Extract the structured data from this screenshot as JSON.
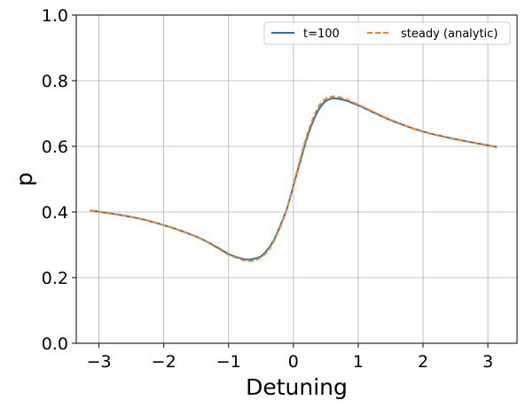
{
  "chart_data": {
    "type": "line",
    "xlabel": "Detuning",
    "ylabel": "p",
    "xlim": [
      -3.35,
      3.45
    ],
    "ylim": [
      0.0,
      1.0
    ],
    "xticks": [
      -3,
      -2,
      -1,
      0,
      1,
      2,
      3
    ],
    "xtick_labels": [
      "−3",
      "−2",
      "−1",
      "0",
      "1",
      "2",
      "3"
    ],
    "yticks": [
      0.0,
      0.2,
      0.4,
      0.6,
      0.8,
      1.0
    ],
    "ytick_labels": [
      "0.0",
      "0.2",
      "0.4",
      "0.6",
      "0.8",
      "1.0"
    ],
    "grid": true,
    "legend_position": "top-right",
    "series": [
      {
        "name": "t=100",
        "color": "#1f77b4",
        "dash": "solid",
        "x": [
          -3.14,
          -2.5,
          -2.0,
          -1.5,
          -1.2,
          -1.0,
          -0.8,
          -0.7,
          -0.6,
          -0.5,
          -0.4,
          -0.3,
          -0.2,
          -0.1,
          0.0,
          0.1,
          0.2,
          0.3,
          0.4,
          0.5,
          0.6,
          0.7,
          0.8,
          1.0,
          1.5,
          2.0,
          2.5,
          3.14
        ],
        "y": [
          0.405,
          0.385,
          0.36,
          0.325,
          0.295,
          0.272,
          0.258,
          0.255,
          0.258,
          0.265,
          0.285,
          0.315,
          0.36,
          0.41,
          0.48,
          0.55,
          0.62,
          0.675,
          0.715,
          0.738,
          0.746,
          0.745,
          0.74,
          0.725,
          0.68,
          0.645,
          0.622,
          0.598
        ]
      },
      {
        "name": "steady (analytic)",
        "color": "#ff7f0e",
        "dash": "dashed",
        "x": [
          -3.14,
          -2.5,
          -2.0,
          -1.5,
          -1.2,
          -1.0,
          -0.8,
          -0.7,
          -0.6,
          -0.5,
          -0.4,
          -0.3,
          -0.2,
          -0.1,
          0.0,
          0.1,
          0.2,
          0.3,
          0.4,
          0.5,
          0.6,
          0.7,
          0.8,
          1.0,
          1.5,
          2.0,
          2.5,
          3.14
        ],
        "y": [
          0.405,
          0.385,
          0.36,
          0.325,
          0.293,
          0.27,
          0.255,
          0.251,
          0.253,
          0.262,
          0.28,
          0.312,
          0.357,
          0.41,
          0.482,
          0.557,
          0.628,
          0.684,
          0.725,
          0.745,
          0.752,
          0.75,
          0.744,
          0.727,
          0.681,
          0.645,
          0.622,
          0.598
        ]
      }
    ]
  }
}
